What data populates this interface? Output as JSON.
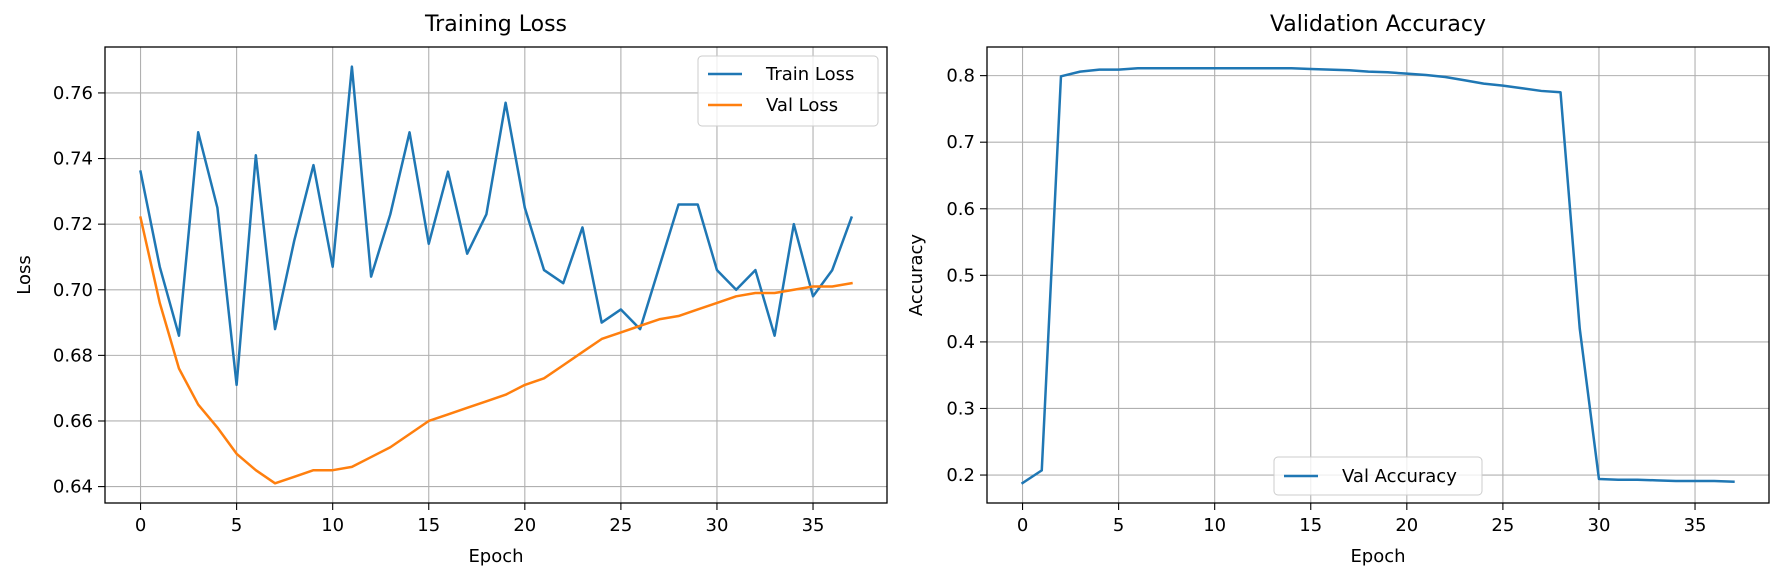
{
  "chart_data": [
    {
      "type": "line",
      "title": "Training Loss",
      "xlabel": "Epoch",
      "ylabel": "Loss",
      "xlim": [
        -1.85,
        38.85
      ],
      "ylim": [
        0.635,
        0.774
      ],
      "xticks": [
        0,
        5,
        10,
        15,
        20,
        25,
        30,
        35
      ],
      "yticks": [
        0.64,
        0.66,
        0.68,
        0.7,
        0.72,
        0.74,
        0.76
      ],
      "ytick_decimals": 2,
      "grid": true,
      "legend": "top-right",
      "series": [
        {
          "name": "Train Loss",
          "color": "#1f77b4",
          "x": [
            0,
            1,
            2,
            3,
            4,
            5,
            6,
            7,
            8,
            9,
            10,
            11,
            12,
            13,
            14,
            15,
            16,
            17,
            18,
            19,
            20,
            21,
            22,
            23,
            24,
            25,
            26,
            27,
            28,
            29,
            30,
            31,
            32,
            33,
            34,
            35,
            36,
            37
          ],
          "y": [
            0.736,
            0.707,
            0.686,
            0.748,
            0.725,
            0.671,
            0.741,
            0.688,
            0.715,
            0.738,
            0.707,
            0.768,
            0.704,
            0.723,
            0.748,
            0.714,
            0.736,
            0.711,
            0.723,
            0.757,
            0.725,
            0.706,
            0.702,
            0.719,
            0.69,
            0.694,
            0.688,
            0.707,
            0.726,
            0.726,
            0.706,
            0.7,
            0.706,
            0.686,
            0.72,
            0.698,
            0.706,
            0.722
          ]
        },
        {
          "name": "Val Loss",
          "color": "#ff7f0e",
          "x": [
            0,
            1,
            2,
            3,
            4,
            5,
            6,
            7,
            8,
            9,
            10,
            11,
            12,
            13,
            14,
            15,
            16,
            17,
            18,
            19,
            20,
            21,
            22,
            23,
            24,
            25,
            26,
            27,
            28,
            29,
            30,
            31,
            32,
            33,
            34,
            35,
            36,
            37
          ],
          "y": [
            0.722,
            0.696,
            0.676,
            0.665,
            0.658,
            0.65,
            0.645,
            0.641,
            0.643,
            0.645,
            0.645,
            0.646,
            0.649,
            0.652,
            0.656,
            0.66,
            0.662,
            0.664,
            0.666,
            0.668,
            0.671,
            0.673,
            0.677,
            0.681,
            0.685,
            0.687,
            0.689,
            0.691,
            0.692,
            0.694,
            0.696,
            0.698,
            0.699,
            0.699,
            0.7,
            0.701,
            0.701,
            0.702
          ]
        }
      ]
    },
    {
      "type": "line",
      "title": "Validation Accuracy",
      "xlabel": "Epoch",
      "ylabel": "Accuracy",
      "xlim": [
        -1.85,
        38.85
      ],
      "ylim": [
        0.158,
        0.843
      ],
      "xticks": [
        0,
        5,
        10,
        15,
        20,
        25,
        30,
        35
      ],
      "yticks": [
        0.2,
        0.3,
        0.4,
        0.5,
        0.6,
        0.7,
        0.8
      ],
      "ytick_decimals": 1,
      "grid": true,
      "legend": "bottom-center",
      "series": [
        {
          "name": "Val Accuracy",
          "color": "#1f77b4",
          "x": [
            0,
            1,
            2,
            3,
            4,
            5,
            6,
            7,
            8,
            9,
            10,
            11,
            12,
            13,
            14,
            15,
            16,
            17,
            18,
            19,
            20,
            21,
            22,
            23,
            24,
            25,
            26,
            27,
            28,
            29,
            30,
            31,
            32,
            33,
            34,
            35,
            36,
            37
          ],
          "y": [
            0.188,
            0.207,
            0.799,
            0.806,
            0.809,
            0.809,
            0.811,
            0.811,
            0.811,
            0.811,
            0.811,
            0.811,
            0.811,
            0.811,
            0.811,
            0.81,
            0.809,
            0.808,
            0.806,
            0.805,
            0.803,
            0.801,
            0.798,
            0.793,
            0.788,
            0.785,
            0.781,
            0.777,
            0.775,
            0.42,
            0.194,
            0.193,
            0.193,
            0.192,
            0.191,
            0.191,
            0.191,
            0.19
          ]
        }
      ]
    }
  ]
}
